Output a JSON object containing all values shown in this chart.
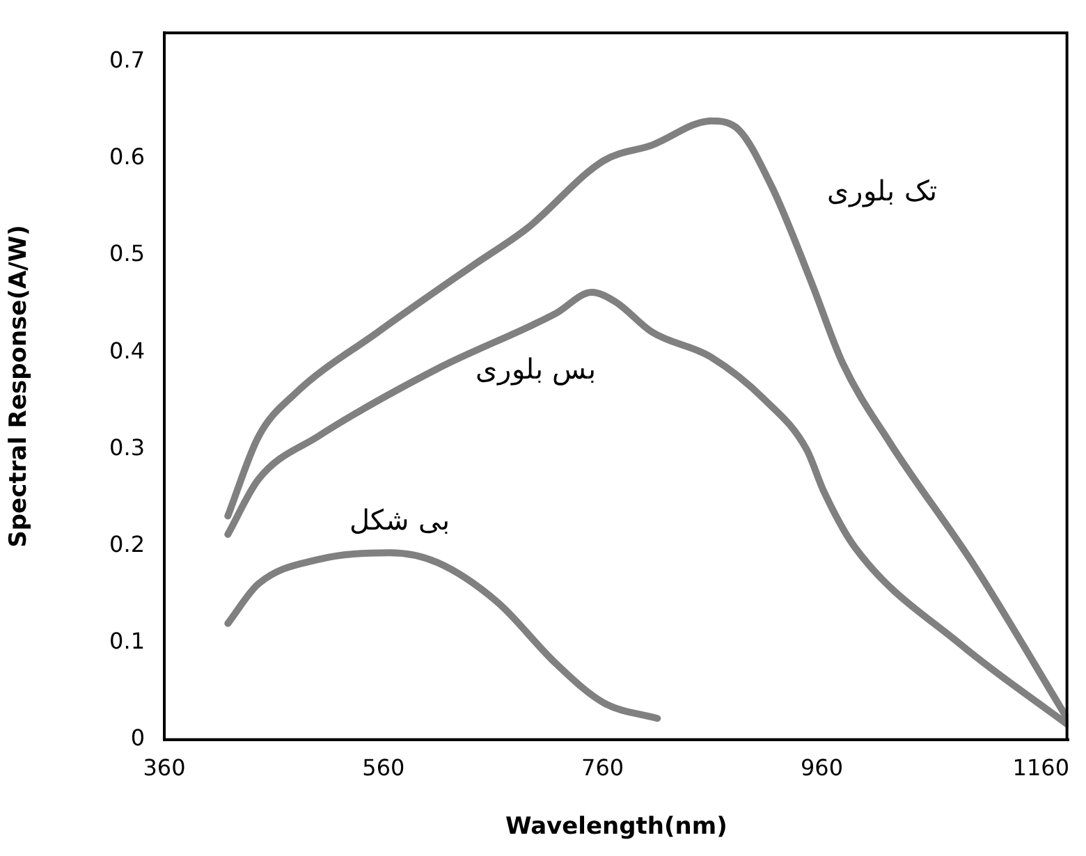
{
  "chart_data": {
    "type": "line",
    "xlabel": "Wavelength(nm)",
    "ylabel": "Spectral Response(A/W)",
    "xlim": [
      360,
      1185
    ],
    "xticks": [
      360,
      560,
      760,
      960,
      1160
    ],
    "ylim": [
      0,
      0.73
    ],
    "yticks": [
      0,
      0.1,
      0.2,
      0.3,
      0.4,
      0.5,
      0.6,
      0.7
    ],
    "grid": false,
    "legend": false,
    "marker": "none",
    "line_style": "solid",
    "series": [
      {
        "name": "تک بلوری",
        "color": "#808080",
        "x": [
          418,
          446,
          479,
          555,
          642,
          691,
          761,
          805,
          859,
          881,
          914,
          951,
          979,
          1022,
          1099,
          1185
        ],
        "values": [
          0.231,
          0.313,
          0.357,
          0.421,
          0.49,
          0.528,
          0.598,
          0.614,
          0.639,
          0.633,
          0.572,
          0.471,
          0.389,
          0.307,
          0.18,
          0.02
        ]
      },
      {
        "name": "بس بلوری",
        "color": "#808080",
        "x": [
          418,
          446,
          500,
          609,
          717,
          750,
          772,
          805,
          859,
          908,
          946,
          962,
          990,
          1087,
          1185
        ],
        "values": [
          0.212,
          0.269,
          0.313,
          0.383,
          0.44,
          0.462,
          0.452,
          0.421,
          0.395,
          0.351,
          0.3,
          0.256,
          0.199,
          0.098,
          0.015
        ]
      },
      {
        "name": "بی شکل",
        "color": "#808080",
        "x": [
          418,
          446,
          500,
          566,
          609,
          664,
          717,
          761,
          810
        ],
        "values": [
          0.12,
          0.161,
          0.186,
          0.193,
          0.183,
          0.142,
          0.079,
          0.038,
          0.022
        ]
      }
    ]
  }
}
